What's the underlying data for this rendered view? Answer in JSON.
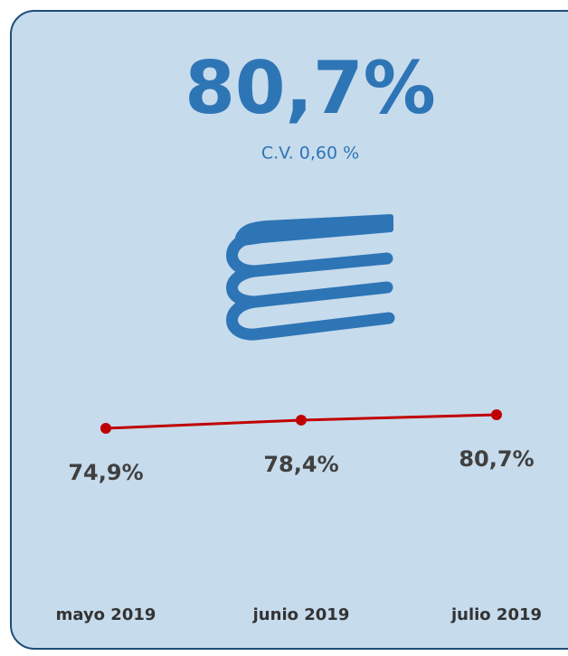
{
  "chart_data": {
    "type": "line",
    "title": "80,7%",
    "subtitle": "C.V. 0,60 %",
    "categories": [
      "mayo 2019",
      "junio 2019",
      "julio 2019"
    ],
    "series": [
      {
        "color": "#c00000",
        "values": [
          74.9,
          78.4,
          80.7
        ],
        "value_labels": [
          "74,9%",
          "78,4%",
          "80,7%"
        ]
      }
    ],
    "ylim": [
      0,
      100
    ]
  }
}
